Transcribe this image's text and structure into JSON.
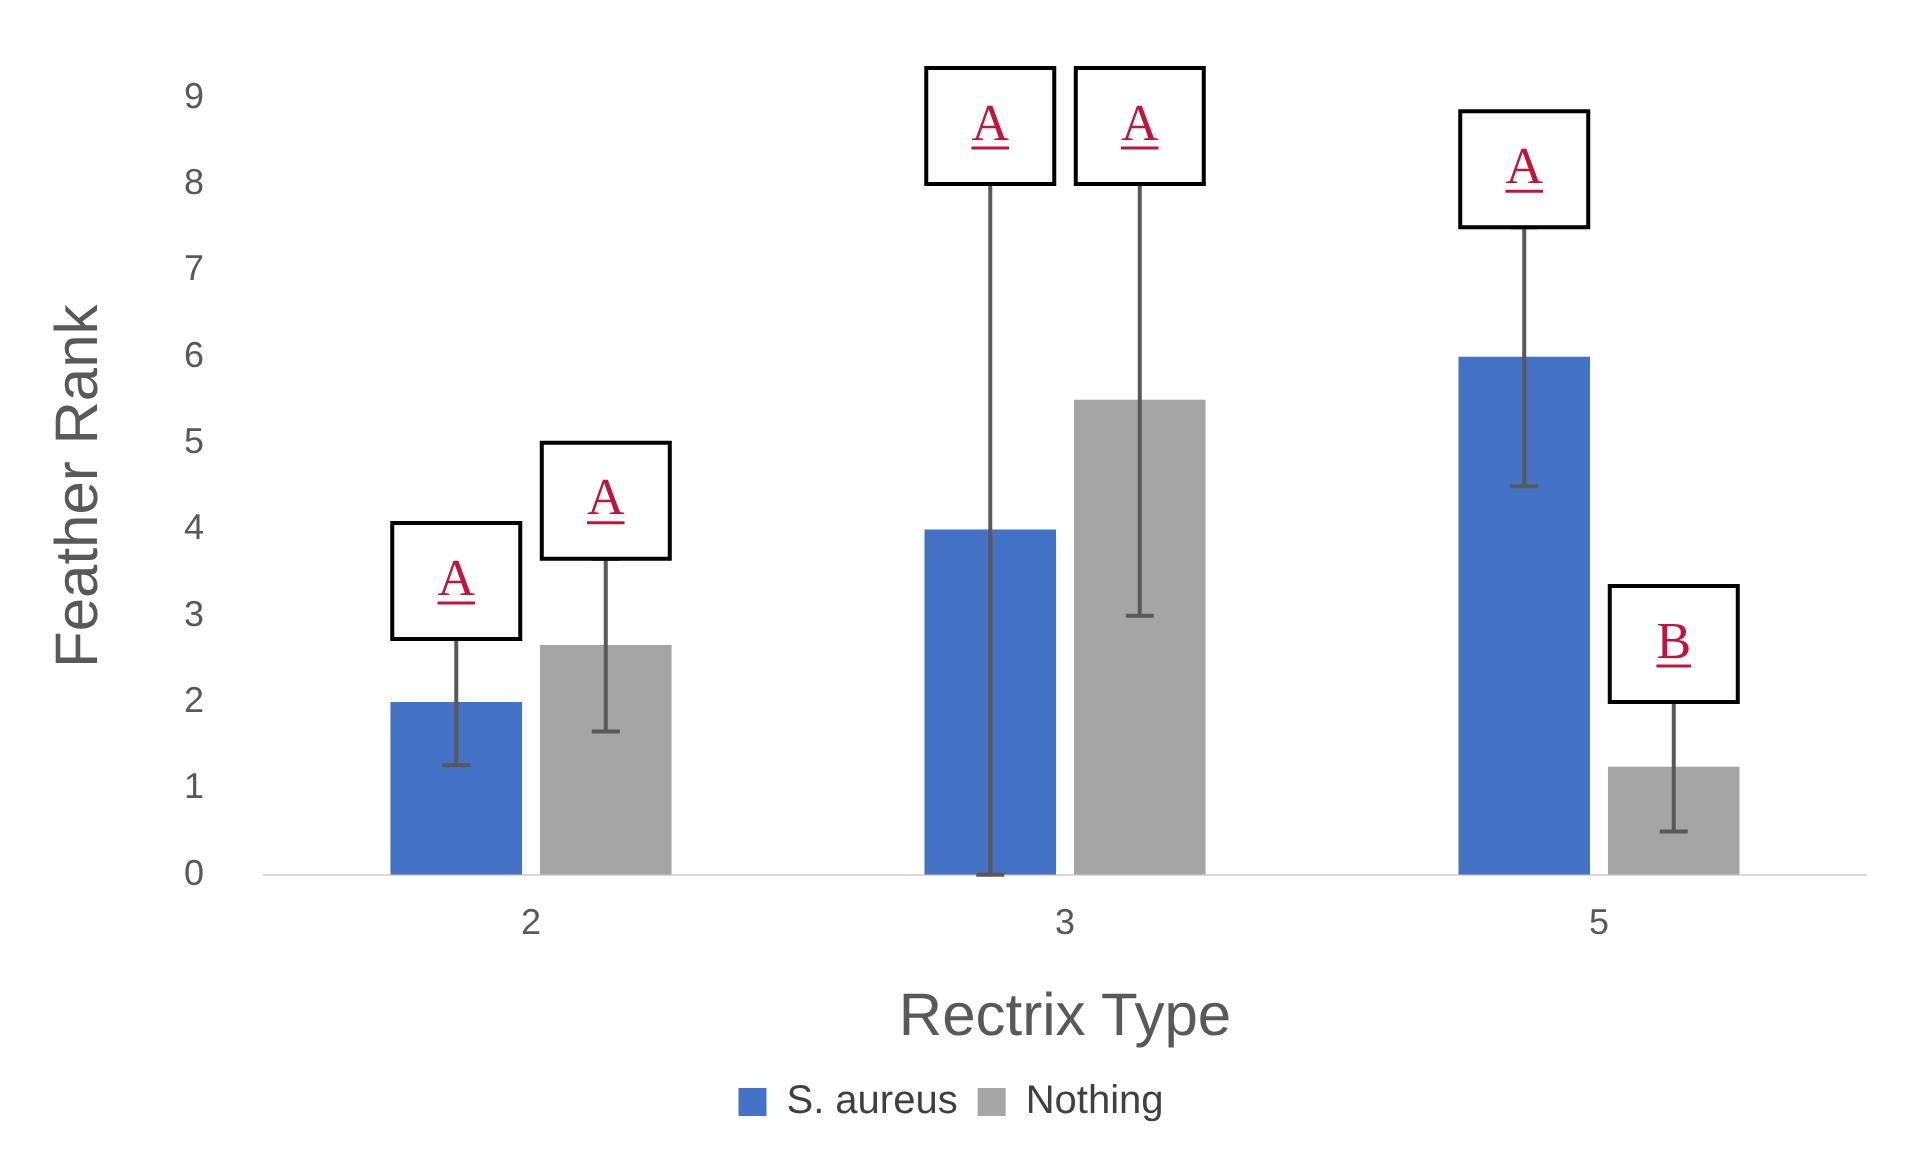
{
  "chart_data": {
    "type": "bar",
    "xlabel": "Rectrix Type",
    "ylabel": "Feather Rank",
    "categories": [
      "2",
      "3",
      "5"
    ],
    "series": [
      {
        "name": "S. aureus",
        "color": "#4472c4",
        "values": [
          2,
          4,
          6
        ],
        "errors": [
          0.73,
          4,
          1.5
        ]
      },
      {
        "name": "Nothing",
        "color": "#a5a5a5",
        "values": [
          2.66,
          5.5,
          1.25
        ],
        "errors": [
          1,
          2.5,
          0.75
        ]
      }
    ],
    "annotations": [
      "A",
      "A",
      "A",
      "A",
      "A",
      "B"
    ],
    "ylim": [
      0,
      9
    ],
    "yticks": [
      0,
      1,
      2,
      3,
      4,
      5,
      6,
      7,
      8,
      9
    ],
    "grid": false,
    "legend": "bottom"
  }
}
